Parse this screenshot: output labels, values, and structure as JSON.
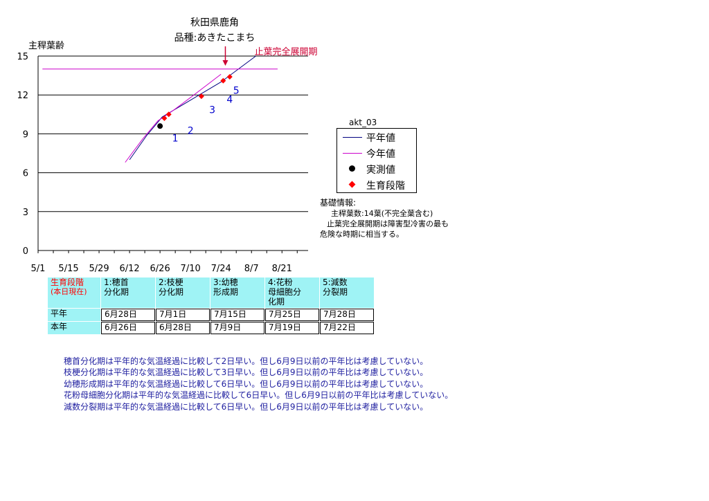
{
  "titles": {
    "location": "秋田県鹿角",
    "variety": "品種:あきたこまち"
  },
  "chart_data": {
    "type": "line",
    "ylabel": "主稈葉齢",
    "ylim": [
      0,
      15
    ],
    "yticks": [
      "0",
      "3",
      "6",
      "9",
      "12",
      "15"
    ],
    "x_ticks": [
      "5/1",
      "5/15",
      "5/29",
      "6/12",
      "6/26",
      "7/10",
      "7/24",
      "8/7",
      "8/21"
    ],
    "x_tick_days": [
      0,
      14,
      28,
      42,
      56,
      70,
      84,
      98,
      112
    ],
    "grid": "horizontal",
    "flag_leaf_line": {
      "value": 15,
      "label": "止葉完全展開期"
    },
    "series": [
      {
        "name": "平年値",
        "color": "#000080",
        "x": [
          42,
          50,
          57,
          66,
          75,
          84,
          92,
          100
        ],
        "y": [
          7.0,
          8.9,
          10.3,
          11.2,
          12.1,
          13.0,
          14.0,
          15.0
        ]
      },
      {
        "name": "今年値",
        "color": "#cc00cc",
        "x": [
          40,
          48,
          55,
          62,
          70,
          77,
          84
        ],
        "y": [
          6.8,
          8.6,
          10.0,
          10.8,
          11.8,
          12.7,
          13.6
        ]
      },
      {
        "name": "今年値",
        "color": "#cc00cc",
        "x": [
          2,
          110
        ],
        "y": [
          14.0,
          14.0
        ]
      }
    ],
    "measured": {
      "name": "実測値",
      "x": [
        56
      ],
      "y": [
        9.6
      ]
    },
    "stages": {
      "name": "生育段階",
      "x": [
        58,
        60,
        75,
        85,
        88
      ],
      "y": [
        10.2,
        10.5,
        11.9,
        13.1,
        13.4
      ]
    },
    "stage_labels": [
      {
        "text": "1",
        "x": 63,
        "y": 8.4
      },
      {
        "text": "2",
        "x": 70,
        "y": 9.0
      },
      {
        "text": "3",
        "x": 80,
        "y": 10.6
      },
      {
        "text": "4",
        "x": 88,
        "y": 11.4
      },
      {
        "text": "5",
        "x": 91,
        "y": 12.1
      }
    ],
    "series_tag": "akt_03"
  },
  "legend": {
    "items": [
      "平年値",
      "今年値",
      "実測値",
      "生育段階"
    ],
    "colors": {
      "normal": "#000080",
      "current": "#cc00cc",
      "measured": "#000000",
      "stage": "#ff0000"
    }
  },
  "info": {
    "heading": "基礎情報:",
    "line1": "主稈葉数:14葉(不完全葉含む)",
    "line2": "止葉完全展開期は障害型冷害の最も",
    "line3": "危険な時期に相当する。"
  },
  "stages_table": {
    "corner_line1": "生育段階",
    "corner_line2": "(本日現在)",
    "headers": [
      {
        "line1": "1:穂首",
        "line2": "分化期",
        "line3": ""
      },
      {
        "line1": "2:枝梗",
        "line2": "分化期",
        "line3": ""
      },
      {
        "line1": "3:幼穂",
        "line2": "形成期",
        "line3": ""
      },
      {
        "line1": "4:花粉",
        "line2": "母細胞分",
        "line3": "化期"
      },
      {
        "line1": "5:減数",
        "line2": "分裂期",
        "line3": ""
      }
    ],
    "rows": [
      {
        "label": "平年",
        "values": [
          "6月28日",
          "7月1日",
          "7月15日",
          "7月25日",
          "7月28日"
        ]
      },
      {
        "label": "本年",
        "values": [
          "6月26日",
          "6月28日",
          "7月9日",
          "7月19日",
          "7月22日"
        ]
      }
    ]
  },
  "notes": [
    "穂首分化期は平年的な気温経過に比較して2日早い。但し6月9日以前の平年比は考慮していない。",
    "枝梗分化期は平年的な気温経過に比較して3日早い。但し6月9日以前の平年比は考慮していない。",
    "幼穂形成期は平年的な気温経過に比較して6日早い。但し6月9日以前の平年比は考慮していない。",
    "花粉母細胞分化期は平年的な気温経過に比較して6日早い。但し6月9日以前の平年比は考慮していない。",
    "減数分裂期は平年的な気温経過に比較して6日早い。但し6月9日以前の平年比は考慮していない。"
  ]
}
